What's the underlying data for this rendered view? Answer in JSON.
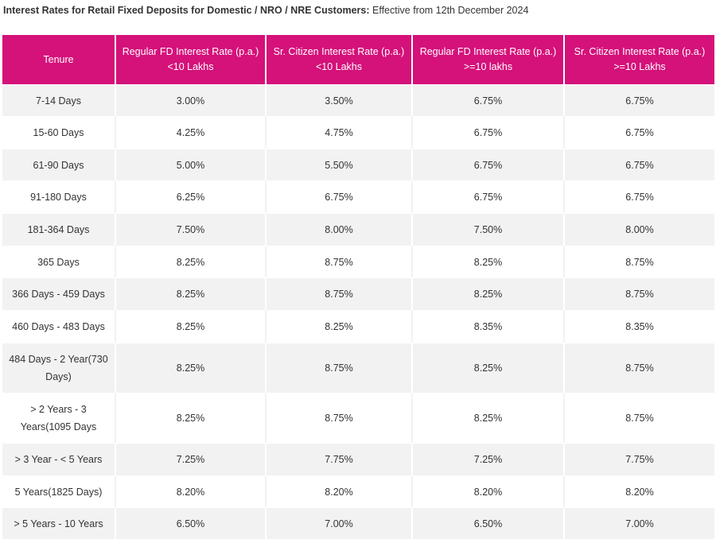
{
  "title": {
    "strong": "Interest Rates for Retail Fixed Deposits for Domestic / NRO / NRE Customers:",
    "rest": " Effective from 12th December 2024"
  },
  "colors": {
    "header_bg": "#d5117a",
    "header_text": "#ffffff",
    "stripe": "#f2f2f2"
  },
  "table": {
    "headers": [
      {
        "line1": "Tenure",
        "line2": ""
      },
      {
        "line1": "Regular FD Interest Rate (p.a.)",
        "line2": "<10 Lakhs"
      },
      {
        "line1": "Sr. Citizen Interest Rate (p.a.)",
        "line2": "<10 Lakhs"
      },
      {
        "line1": "Regular FD Interest Rate (p.a.)",
        "line2": ">=10 lakhs"
      },
      {
        "line1": "Sr. Citizen Interest Rate (p.a.)",
        "line2": ">=10 Lakhs"
      }
    ],
    "rows": [
      {
        "tenure": "7-14 Days",
        "rates": [
          "3.00%",
          "3.50%",
          "6.75%",
          "6.75%"
        ]
      },
      {
        "tenure": "15-60 Days",
        "rates": [
          "4.25%",
          "4.75%",
          "6.75%",
          "6.75%"
        ]
      },
      {
        "tenure": "61-90 Days",
        "rates": [
          "5.00%",
          "5.50%",
          "6.75%",
          "6.75%"
        ]
      },
      {
        "tenure": "91-180 Days",
        "rates": [
          "6.25%",
          "6.75%",
          "6.75%",
          "6.75%"
        ]
      },
      {
        "tenure": "181-364 Days",
        "rates": [
          "7.50%",
          "8.00%",
          "7.50%",
          "8.00%"
        ]
      },
      {
        "tenure": "365 Days",
        "rates": [
          "8.25%",
          "8.75%",
          "8.25%",
          "8.75%"
        ]
      },
      {
        "tenure": "366 Days - 459 Days",
        "rates": [
          "8.25%",
          "8.75%",
          "8.25%",
          "8.75%"
        ]
      },
      {
        "tenure": "460 Days - 483 Days",
        "rates": [
          "8.25%",
          "8.25%",
          "8.35%",
          "8.35%"
        ]
      },
      {
        "tenure": "484 Days - 2 Year(730 Days)",
        "rates": [
          "8.25%",
          "8.75%",
          "8.25%",
          "8.75%"
        ]
      },
      {
        "tenure": "> 2 Years - 3 Years(1095 Days",
        "rates": [
          "8.25%",
          "8.75%",
          "8.25%",
          "8.75%"
        ]
      },
      {
        "tenure": "> 3 Year - < 5 Years",
        "rates": [
          "7.25%",
          "7.75%",
          "7.25%",
          "7.75%"
        ]
      },
      {
        "tenure": "5 Years(1825 Days)",
        "rates": [
          "8.20%",
          "8.20%",
          "8.20%",
          "8.20%"
        ]
      },
      {
        "tenure": "> 5 Years - 10 Years",
        "rates": [
          "6.50%",
          "7.00%",
          "6.50%",
          "7.00%"
        ]
      }
    ]
  }
}
